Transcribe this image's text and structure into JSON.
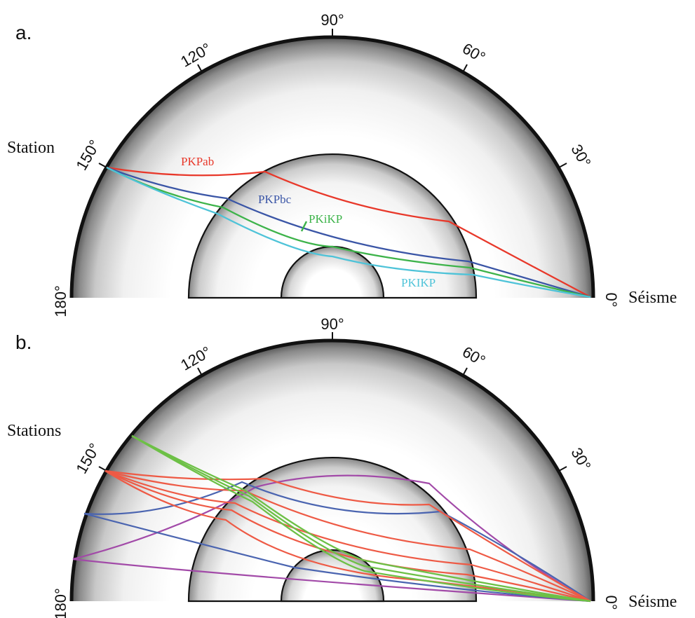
{
  "panel_a": {
    "letter": "a.",
    "ticks": {
      "t90": "90°",
      "t120": "120°",
      "t60": "60°",
      "t150": "150°",
      "t30": "30°",
      "t180": "180°",
      "t0": "0°"
    },
    "station_label": "Station",
    "source_label": "Séisme",
    "rays": [
      {
        "name": "PKPab",
        "color": "#e8382a"
      },
      {
        "name": "PKPbc",
        "color": "#3a55a6"
      },
      {
        "name": "PKiKP",
        "color": "#3db34a"
      },
      {
        "name": "PKIKP",
        "color": "#4ec3d8"
      }
    ]
  },
  "panel_b": {
    "letter": "b.",
    "ticks": {
      "t90": "90°",
      "t120": "120°",
      "t60": "60°",
      "t150": "150°",
      "t30": "30°",
      "t180": "180°",
      "t0": "0°"
    },
    "station_label": "Stations",
    "source_label": "Séisme",
    "colors": {
      "red": "#ee5a45",
      "blue": "#4a64b0",
      "green": "#6dc046",
      "purple": "#a24aa8"
    }
  }
}
